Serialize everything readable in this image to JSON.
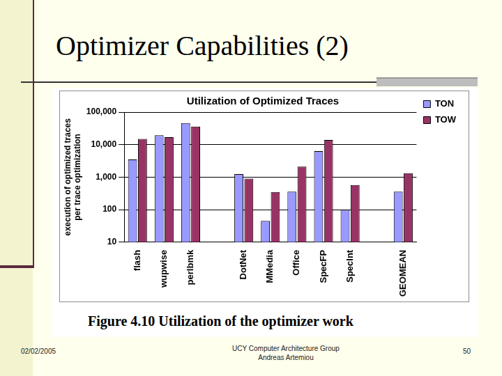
{
  "slide": {
    "title": "Optimizer Capabilities (2)",
    "caption": "Figure 4.10 Utilization of the optimizer work",
    "footer": {
      "date": "02/02/2005",
      "center": [
        "UCY Computer Architecture Group",
        "Andreas Artemiou"
      ],
      "page": "50"
    }
  },
  "chart_data": {
    "type": "bar",
    "title": "Utilization of Optimized Traces",
    "y_label": [
      "execution of optimized traces",
      "per trace optimization"
    ],
    "categories": [
      "flash",
      "wupwise",
      "perlbmk",
      null,
      "DotNet",
      "MMedia",
      "Office",
      "SpecFP",
      "SpecInt",
      null,
      "GEOMEAN"
    ],
    "series": [
      {
        "name": "TON",
        "color": "#9999ff",
        "values": [
          3500,
          19500,
          46000,
          null,
          1250,
          45,
          360,
          6300,
          100,
          null,
          360
        ]
      },
      {
        "name": "TOW",
        "color": "#993366",
        "values": [
          15000,
          17000,
          36000,
          null,
          900,
          350,
          2100,
          14000,
          570,
          null,
          1320
        ]
      }
    ],
    "log": "y",
    "ylim": [
      10,
      100000
    ],
    "yticks": [
      10,
      100,
      {
        "value": 1000,
        "label": "1,000"
      },
      {
        "value": 10000,
        "label": "10,000"
      },
      {
        "value": 100000,
        "label": "100,000"
      }
    ],
    "grid": true,
    "legend": "top-right"
  }
}
